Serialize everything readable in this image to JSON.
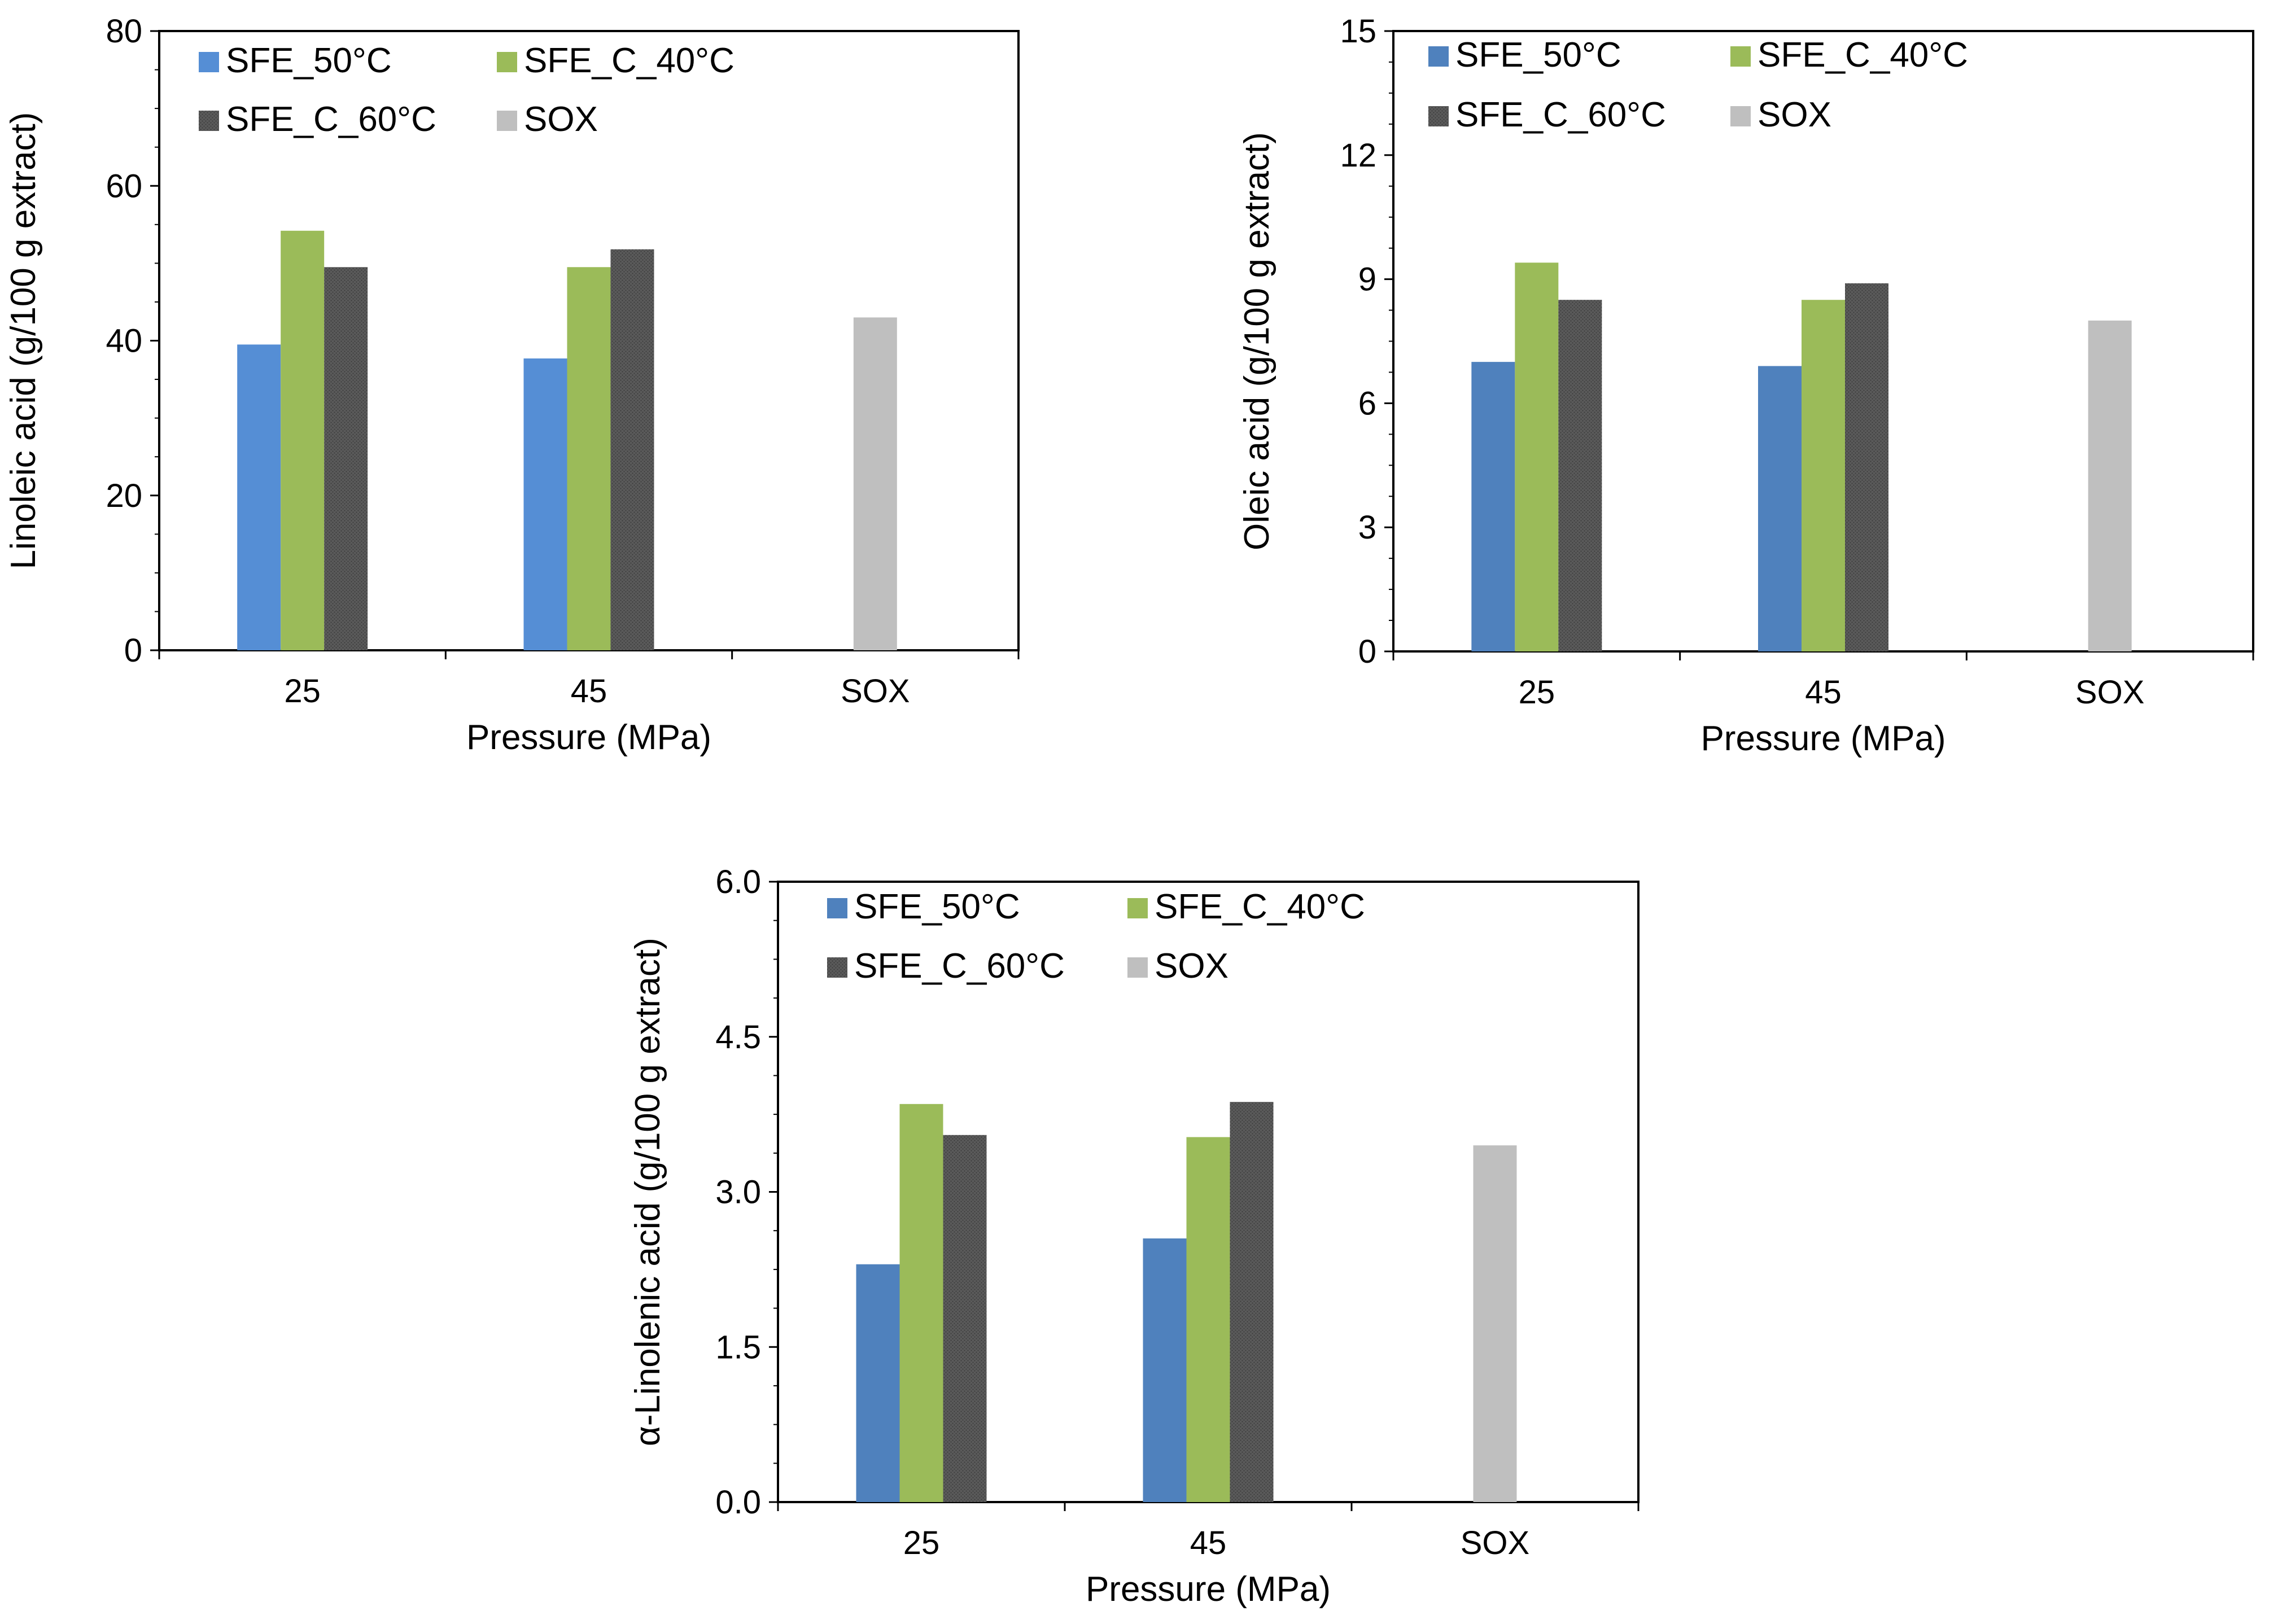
{
  "chart_data": [
    {
      "type": "bar",
      "title": "",
      "xlabel": "Pressure (MPa)",
      "ylabel": "Linoleic acid (g/100 g extract)",
      "ylim": [
        0,
        80
      ],
      "yticks": [
        "0",
        "20",
        "40",
        "60",
        "80"
      ],
      "categories": [
        "25",
        "45",
        "SOX"
      ],
      "legend_position": "top-left",
      "series": [
        {
          "name": "SFE_50°C",
          "color": "#558ED5",
          "values": [
            39.5,
            37.7,
            null
          ]
        },
        {
          "name": "SFE_C_40°C",
          "color": "#9BBB59",
          "values": [
            54.2,
            49.5,
            null
          ]
        },
        {
          "name": "SFE_C_60°C",
          "color": "#595959",
          "values": [
            49.5,
            51.8,
            null
          ]
        },
        {
          "name": "SOX",
          "color": "#BFBFBF",
          "values": [
            null,
            null,
            43.0
          ]
        }
      ]
    },
    {
      "type": "bar",
      "title": "",
      "xlabel": "Pressure (MPa)",
      "ylabel": "Oleic acid (g/100 g extract)",
      "ylim": [
        0,
        15
      ],
      "yticks": [
        "0",
        "3",
        "6",
        "9",
        "12",
        "15"
      ],
      "categories": [
        "25",
        "45",
        "SOX"
      ],
      "legend_position": "top-left",
      "series": [
        {
          "name": "SFE_50°C",
          "color": "#4F81BD",
          "values": [
            7.0,
            6.9,
            null
          ]
        },
        {
          "name": "SFE_C_40°C",
          "color": "#9BBB59",
          "values": [
            9.4,
            8.5,
            null
          ]
        },
        {
          "name": "SFE_C_60°C",
          "color": "#595959",
          "values": [
            8.5,
            8.9,
            null
          ]
        },
        {
          "name": "SOX",
          "color": "#BFBFBF",
          "values": [
            null,
            null,
            8.0
          ]
        }
      ]
    },
    {
      "type": "bar",
      "title": "",
      "xlabel": "Pressure (MPa)",
      "ylabel": "α-Linolenic acid (g/100 g extract)",
      "ylim": [
        0,
        6
      ],
      "yticks": [
        "0.0",
        "1.5",
        "3.0",
        "4.5",
        "6.0"
      ],
      "categories": [
        "25",
        "45",
        "SOX"
      ],
      "legend_position": "top-left",
      "series": [
        {
          "name": "SFE_50°C",
          "color": "#4F81BD",
          "values": [
            2.3,
            2.55,
            null
          ]
        },
        {
          "name": "SFE_C_40°C",
          "color": "#9BBB59",
          "values": [
            3.85,
            3.53,
            null
          ]
        },
        {
          "name": "SFE_C_60°C",
          "color": "#595959",
          "values": [
            3.55,
            3.87,
            null
          ]
        },
        {
          "name": "SOX",
          "color": "#BFBFBF",
          "values": [
            null,
            null,
            3.45
          ]
        }
      ]
    }
  ]
}
